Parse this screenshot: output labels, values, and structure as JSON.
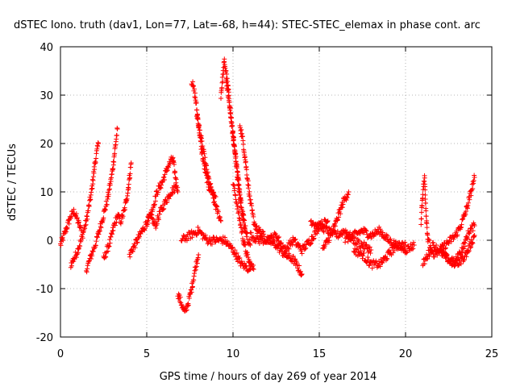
{
  "chart_data": {
    "type": "scatter",
    "title": "dSTEC Iono. truth (dav1, Lon=77, Lat=-68, h=44): STEC-STEC_elemax in phase cont. arc",
    "xlabel": "GPS time / hours of day 269 of year 2014",
    "ylabel": "dSTEC  / TECUs",
    "xlim": [
      0,
      25
    ],
    "ylim": [
      -20,
      40
    ],
    "xticks": [
      "0",
      "5",
      "10",
      "15",
      "20",
      "25"
    ],
    "yticks": [
      "-20",
      "-10",
      "0",
      "10",
      "20",
      "30",
      "40"
    ],
    "grid": true,
    "marker": "+",
    "color": "#ff0000",
    "series_approx": [
      {
        "x": [
          0.0,
          0.2,
          0.4,
          0.6,
          0.8,
          1.0,
          1.2
        ],
        "y": [
          -1,
          1,
          3,
          5,
          6,
          4,
          2
        ]
      },
      {
        "x": [
          0.6,
          0.9,
          1.2,
          1.5,
          1.8,
          2.0,
          2.2
        ],
        "y": [
          -5,
          -3,
          0,
          4,
          10,
          16,
          20
        ]
      },
      {
        "x": [
          1.5,
          1.8,
          2.1,
          2.4,
          2.7,
          3.0,
          3.2,
          3.3
        ],
        "y": [
          -6,
          -3,
          0,
          4,
          8,
          14,
          20,
          23
        ]
      },
      {
        "x": [
          2.5,
          2.7,
          2.9,
          3.1,
          3.3,
          3.5,
          3.7,
          3.9,
          4.1
        ],
        "y": [
          -4,
          -2,
          0,
          3,
          5,
          4,
          6,
          10,
          16
        ]
      },
      {
        "x": [
          4.0,
          4.3,
          4.6,
          4.9,
          5.2,
          5.5,
          5.8,
          6.1,
          6.4,
          6.7
        ],
        "y": [
          -3,
          -1,
          1,
          3,
          5,
          3,
          6,
          8,
          10,
          11
        ]
      },
      {
        "x": [
          5.0,
          5.3,
          5.6,
          5.9,
          6.2,
          6.5,
          6.8
        ],
        "y": [
          4,
          6,
          10,
          12,
          15,
          17,
          10
        ]
      },
      {
        "x": [
          6.8,
          7.0,
          7.2,
          7.4,
          7.6,
          7.8,
          8.0
        ],
        "y": [
          -11,
          -13,
          -15,
          -13,
          -10,
          -6,
          -3
        ]
      },
      {
        "x": [
          7.6,
          7.8,
          8.0,
          8.2,
          8.4,
          8.6,
          8.8,
          9.0
        ],
        "y": [
          33,
          30,
          24,
          18,
          14,
          11,
          10,
          9
        ]
      },
      {
        "x": [
          7.9,
          8.1,
          8.3,
          8.5,
          8.7,
          8.9,
          9.1,
          9.3
        ],
        "y": [
          26,
          22,
          18,
          14,
          11,
          8,
          6,
          4
        ]
      },
      {
        "x": [
          9.3,
          9.5,
          9.7,
          9.9,
          10.1,
          10.3,
          10.5,
          10.7
        ],
        "y": [
          30,
          37,
          32,
          25,
          18,
          12,
          6,
          2
        ]
      },
      {
        "x": [
          9.6,
          9.8,
          10.0,
          10.2,
          10.4,
          10.6,
          10.8,
          11.0
        ],
        "y": [
          33,
          28,
          22,
          16,
          10,
          5,
          1,
          -1
        ]
      },
      {
        "x": [
          10.0,
          10.2,
          10.4,
          10.6,
          10.8,
          11.0,
          11.2
        ],
        "y": [
          12,
          8,
          4,
          0,
          -3,
          -5,
          -6
        ]
      },
      {
        "x": [
          10.4,
          10.6,
          10.8,
          11.0,
          11.2,
          11.4,
          11.6
        ],
        "y": [
          24,
          20,
          14,
          8,
          4,
          2,
          1
        ]
      },
      {
        "x": [
          7.0,
          7.5,
          8.0,
          8.5,
          9.0,
          9.5,
          10.0,
          10.5,
          11.0
        ],
        "y": [
          0,
          1,
          2,
          0,
          0,
          0,
          -2,
          -5,
          -6
        ]
      },
      {
        "x": [
          11.0,
          11.5,
          12.0,
          12.5,
          13.0,
          13.5,
          14.0
        ],
        "y": [
          1,
          0,
          0,
          -1,
          -3,
          -4,
          -7
        ]
      },
      {
        "x": [
          11.5,
          12.0,
          12.5,
          13.0,
          13.5,
          14.0,
          14.5,
          15.0,
          15.5
        ],
        "y": [
          2,
          0,
          1,
          -2,
          0,
          -2,
          0,
          3,
          4
        ]
      },
      {
        "x": [
          14.5,
          15.0,
          15.5,
          16.0,
          16.5,
          17.0,
          17.5,
          18.0
        ],
        "y": [
          4,
          3,
          2,
          1,
          2,
          0,
          -1,
          -2
        ]
      },
      {
        "x": [
          15.2,
          15.5,
          15.8,
          16.1,
          16.4,
          16.7
        ],
        "y": [
          -2,
          0,
          2,
          5,
          8,
          10
        ]
      },
      {
        "x": [
          16.5,
          17.0,
          17.5,
          18.0,
          18.5,
          19.0,
          19.5,
          20.0,
          20.5
        ],
        "y": [
          0,
          1,
          2,
          1,
          2,
          0,
          -1,
          -2,
          -1
        ]
      },
      {
        "x": [
          17.0,
          17.5,
          18.0,
          18.5,
          19.0,
          19.5,
          20.0
        ],
        "y": [
          -2,
          -3,
          -5,
          -5,
          -3,
          -1,
          -1
        ]
      },
      {
        "x": [
          21.0,
          21.3,
          21.6,
          21.9,
          22.2,
          22.5,
          22.8,
          23.1,
          23.4,
          23.7,
          24.0
        ],
        "y": [
          -5,
          -3,
          -1,
          -2,
          -3,
          -4,
          -5,
          -3,
          -1,
          2,
          3
        ]
      },
      {
        "x": [
          20.9,
          21.0,
          21.1,
          21.2,
          21.3,
          21.5
        ],
        "y": [
          4,
          10,
          13,
          5,
          0,
          -2
        ]
      },
      {
        "x": [
          22.0,
          22.3,
          22.6,
          22.9,
          23.2,
          23.5,
          23.8,
          24.0
        ],
        "y": [
          -2,
          -1,
          0,
          1,
          3,
          6,
          10,
          13
        ]
      },
      {
        "x": [
          21.5,
          22.0,
          22.5,
          23.0,
          23.5,
          24.0
        ],
        "y": [
          -3,
          -2,
          -4,
          -5,
          -3,
          1
        ]
      }
    ]
  }
}
